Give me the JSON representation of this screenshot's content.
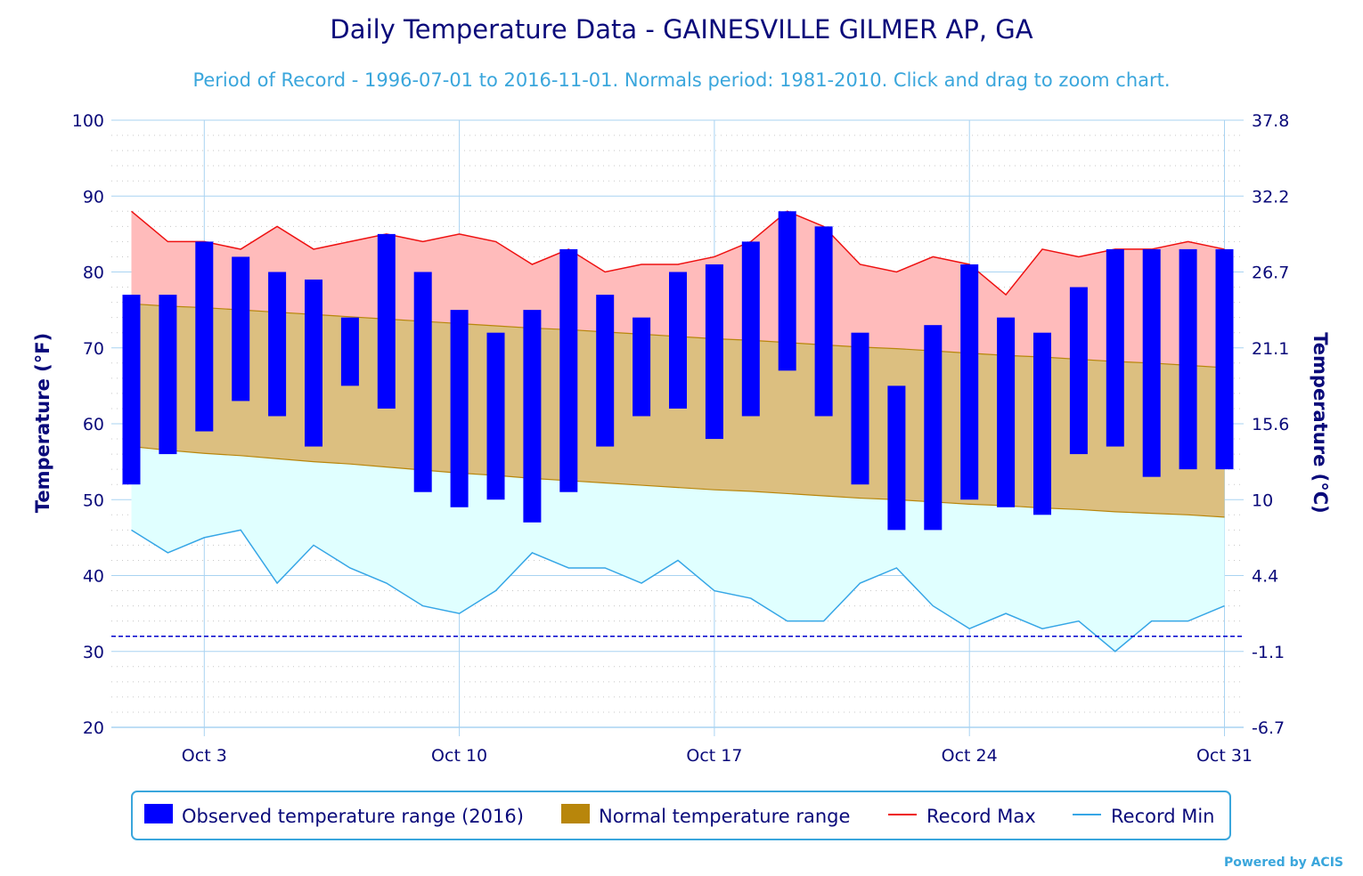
{
  "chart_data": {
    "type": "bar",
    "title": "Daily Temperature Data - GAINESVILLE GILMER AP, GA",
    "subtitle": "Period of Record - 1996-07-01 to 2016-11-01. Normals period: 1981-2010. Click and drag to zoom chart.",
    "ylabel_left": "Temperature (°F)",
    "ylabel_right": "Temperature (°C)",
    "ylim": [
      20,
      100
    ],
    "y_ticks_left": [
      "100",
      "90",
      "80",
      "70",
      "60",
      "50",
      "40",
      "30",
      "20"
    ],
    "y_ticks_right": [
      "37.8",
      "32.2",
      "26.7",
      "21.1",
      "15.6",
      "10",
      "4.4",
      "-1.1",
      "-6.7"
    ],
    "x_ticks": [
      {
        "day": 3,
        "label": "Oct 3"
      },
      {
        "day": 10,
        "label": "Oct 10"
      },
      {
        "day": 17,
        "label": "Oct 17"
      },
      {
        "day": 24,
        "label": "Oct 24"
      },
      {
        "day": 31,
        "label": "Oct 31"
      }
    ],
    "freezing_line_f": 32,
    "days": [
      1,
      2,
      3,
      4,
      5,
      6,
      7,
      8,
      9,
      10,
      11,
      12,
      13,
      14,
      15,
      16,
      17,
      18,
      19,
      20,
      21,
      22,
      23,
      24,
      25,
      26,
      27,
      28,
      29,
      30,
      31
    ],
    "series": [
      {
        "name": "Observed temperature range (2016)",
        "color": "#0000ff",
        "low": [
          52,
          56,
          59,
          63,
          61,
          57,
          65,
          62,
          51,
          49,
          50,
          47,
          51,
          57,
          61,
          62,
          58,
          61,
          67,
          61,
          52,
          46,
          46,
          50,
          49,
          48,
          56,
          57,
          53,
          54,
          54
        ],
        "high": [
          77,
          77,
          84,
          82,
          80,
          79,
          74,
          85,
          80,
          75,
          72,
          75,
          83,
          77,
          74,
          80,
          81,
          84,
          88,
          86,
          72,
          65,
          73,
          81,
          74,
          72,
          78,
          83,
          83,
          83,
          83
        ]
      },
      {
        "name": "Normal temperature range",
        "color": "#b8860b",
        "low": [
          57,
          56.5,
          56.1,
          55.8,
          55.4,
          55,
          54.7,
          54.3,
          53.9,
          53.5,
          53.2,
          52.8,
          52.5,
          52.2,
          51.9,
          51.6,
          51.3,
          51.1,
          50.8,
          50.5,
          50.2,
          50,
          49.7,
          49.4,
          49.2,
          48.9,
          48.7,
          48.4,
          48.2,
          48,
          47.7
        ],
        "high": [
          75.8,
          75.5,
          75.3,
          75,
          74.7,
          74.4,
          74.1,
          73.8,
          73.5,
          73.2,
          72.9,
          72.6,
          72.4,
          72.1,
          71.8,
          71.5,
          71.2,
          71,
          70.7,
          70.4,
          70.1,
          69.9,
          69.6,
          69.3,
          69,
          68.8,
          68.5,
          68.2,
          68,
          67.7,
          67.4
        ]
      },
      {
        "name": "Record Max",
        "color": "#ee1111",
        "values": [
          88,
          84,
          84,
          83,
          86,
          83,
          84,
          85,
          84,
          85,
          84,
          81,
          83,
          80,
          81,
          81,
          82,
          84,
          88,
          86,
          81,
          80,
          82,
          81,
          77,
          83,
          82,
          83,
          83,
          84,
          83
        ]
      },
      {
        "name": "Record Min",
        "color": "#36a6e6",
        "values": [
          46,
          43,
          45,
          46,
          39,
          44,
          41,
          39,
          36,
          35,
          38,
          43,
          41,
          41,
          39,
          42,
          38,
          37,
          34,
          34,
          39,
          41,
          36,
          33,
          35,
          33,
          34,
          30,
          34,
          34,
          36
        ]
      }
    ],
    "legend_placement": "bottom-center"
  },
  "credits": "Powered by ACIS"
}
